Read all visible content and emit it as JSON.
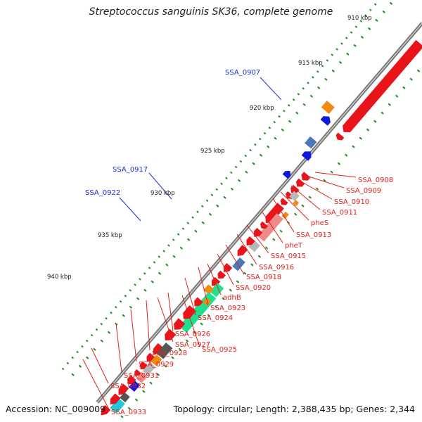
{
  "title": "Streptococcus sanguinis SK36, complete genome",
  "accession": "Accession: NC_009009",
  "summary": "Topology: circular; Length: 2,388,435 bp; Genes: 2,344",
  "colors": {
    "background": "#ffffff",
    "backbone": "#777777",
    "tick": "#1f8a1f",
    "gene_red": "#e8141a",
    "gene_pink": "#f08a8a",
    "gene_orange": "#f08a10",
    "gene_blue": "#1018e0",
    "gene_steel": "#4a78b8",
    "gene_gray": "#b8b8b8",
    "gene_dark": "#555555",
    "gene_green": "#20e090",
    "gene_cyan": "#20c8d8",
    "label_red": "#e0201a",
    "label_blue": "#1a2fd0"
  },
  "scale_labels": [
    "910 kbp",
    "915 kbp",
    "920 kbp",
    "925 kbp",
    "930 kbp",
    "935 kbp",
    "940 kbp"
  ],
  "gene_labels_outer": [
    "SSA_0907",
    "SSA_0917",
    "SSA_0922"
  ],
  "gene_labels_inner": [
    "SSA_0908",
    "SSA_0909",
    "SSA_0910",
    "SSA_0911",
    "pheS",
    "SSA_0913",
    "pheT",
    "SSA_0915",
    "SSA_0916",
    "SSA_0918",
    "SSA_0920",
    "adhB",
    "SSA_0923",
    "SSA_0924",
    "SSA_0926",
    "SSA_0927",
    "SSA_0925",
    "SSA_0928",
    "SSA_0929",
    "SSA_0931",
    "SSA_0932",
    "SSA_0933"
  ]
}
